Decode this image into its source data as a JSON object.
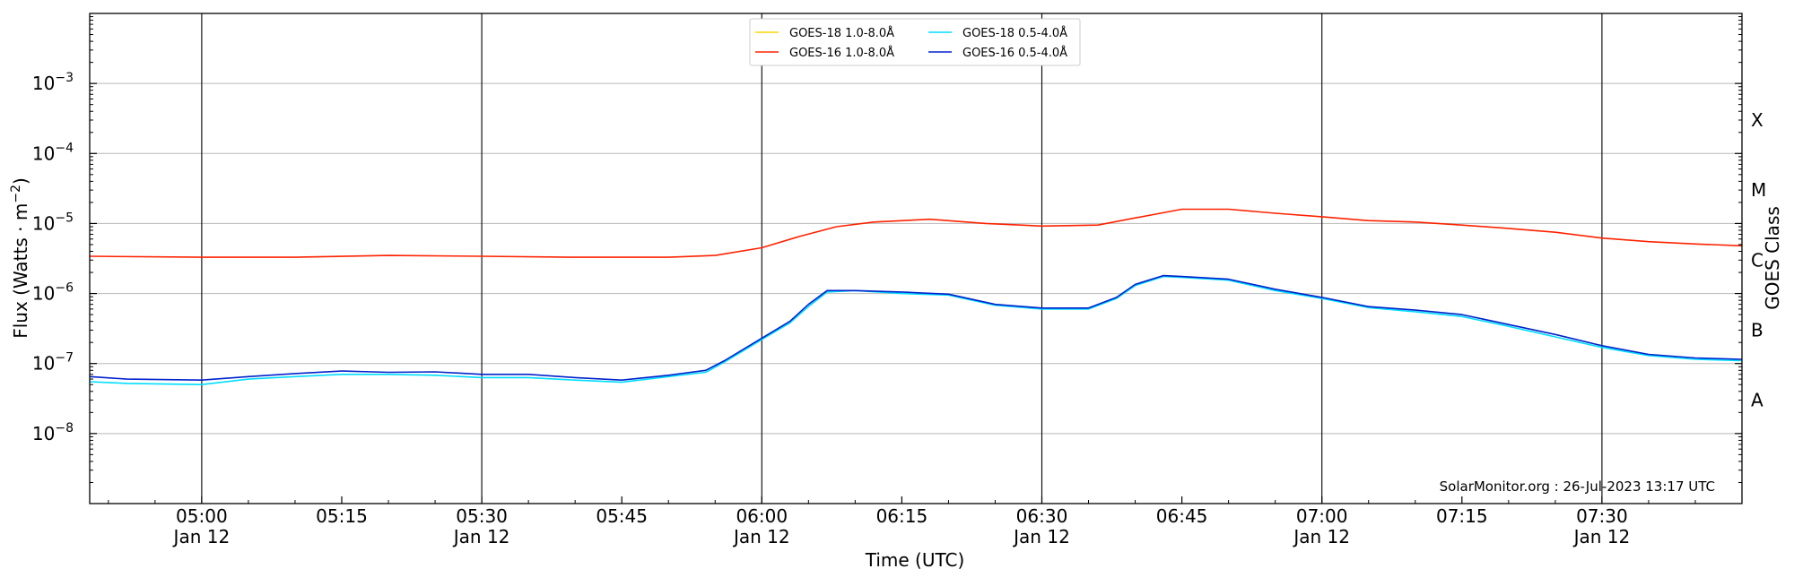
{
  "chart_data": {
    "type": "line",
    "xlabel": "Time (UTC)",
    "ylabel_main": "Flux (Watts · m",
    "ylabel_exp": "−2",
    "ylabel_close": ")",
    "ylabel_right": "GOES Class",
    "y_scale": "log",
    "ylim": [
      1e-09,
      0.01
    ],
    "xlim": [
      "04:48",
      "07:45"
    ],
    "grid": "horizontal gridlines at each decade; vertical lines every 30 minutes",
    "legend_placement": "top-center",
    "credit": "SolarMonitor.org : 26-Jul-2023 13:17 UTC",
    "y_ticks": [
      {
        "value": 1e-08,
        "base": "10",
        "exp": "−8"
      },
      {
        "value": 1e-07,
        "base": "10",
        "exp": "−7"
      },
      {
        "value": 1e-06,
        "base": "10",
        "exp": "−6"
      },
      {
        "value": 1e-05,
        "base": "10",
        "exp": "−5"
      },
      {
        "value": 0.0001,
        "base": "10",
        "exp": "−4"
      },
      {
        "value": 0.001,
        "base": "10",
        "exp": "−3"
      }
    ],
    "x_ticks": [
      {
        "time": "05:00",
        "label": "05:00",
        "date": "Jan 12"
      },
      {
        "time": "05:15",
        "label": "05:15",
        "date": ""
      },
      {
        "time": "05:30",
        "label": "05:30",
        "date": "Jan 12"
      },
      {
        "time": "05:45",
        "label": "05:45",
        "date": ""
      },
      {
        "time": "06:00",
        "label": "06:00",
        "date": "Jan 12"
      },
      {
        "time": "06:15",
        "label": "06:15",
        "date": ""
      },
      {
        "time": "06:30",
        "label": "06:30",
        "date": "Jan 12"
      },
      {
        "time": "06:45",
        "label": "06:45",
        "date": ""
      },
      {
        "time": "07:00",
        "label": "07:00",
        "date": "Jan 12"
      },
      {
        "time": "07:15",
        "label": "07:15",
        "date": ""
      },
      {
        "time": "07:30",
        "label": "07:30",
        "date": "Jan 12"
      }
    ],
    "class_labels": [
      {
        "label": "A",
        "value": 3e-08
      },
      {
        "label": "B",
        "value": 3e-07
      },
      {
        "label": "C",
        "value": 3e-06
      },
      {
        "label": "M",
        "value": 3e-05
      },
      {
        "label": "X",
        "value": 0.0003
      }
    ],
    "series": [
      {
        "name": "GOES-18 1.0-8.0Å",
        "color": "#ffd500",
        "points": []
      },
      {
        "name": "GOES-16 1.0-8.0Å",
        "color": "#ff2200",
        "points": [
          [
            "04:48",
            3.4e-06
          ],
          [
            "05:00",
            3.3e-06
          ],
          [
            "05:10",
            3.3e-06
          ],
          [
            "05:20",
            3.5e-06
          ],
          [
            "05:30",
            3.4e-06
          ],
          [
            "05:40",
            3.3e-06
          ],
          [
            "05:50",
            3.3e-06
          ],
          [
            "05:55",
            3.5e-06
          ],
          [
            "06:00",
            4.5e-06
          ],
          [
            "06:04",
            6.5e-06
          ],
          [
            "06:08",
            9e-06
          ],
          [
            "06:12",
            1.05e-05
          ],
          [
            "06:18",
            1.15e-05
          ],
          [
            "06:24",
            1e-05
          ],
          [
            "06:30",
            9.2e-06
          ],
          [
            "06:36",
            9.5e-06
          ],
          [
            "06:40",
            1.2e-05
          ],
          [
            "06:45",
            1.6e-05
          ],
          [
            "06:50",
            1.6e-05
          ],
          [
            "06:55",
            1.4e-05
          ],
          [
            "07:00",
            1.25e-05
          ],
          [
            "07:05",
            1.1e-05
          ],
          [
            "07:10",
            1.05e-05
          ],
          [
            "07:15",
            9.5e-06
          ],
          [
            "07:20",
            8.5e-06
          ],
          [
            "07:25",
            7.5e-06
          ],
          [
            "07:30",
            6.2e-06
          ],
          [
            "07:35",
            5.5e-06
          ],
          [
            "07:40",
            5.1e-06
          ],
          [
            "07:45",
            4.8e-06
          ]
        ]
      },
      {
        "name": "GOES-18 0.5-4.0Å",
        "color": "#00ddff",
        "points": [
          [
            "04:48",
            5.5e-08
          ],
          [
            "04:52",
            5.2e-08
          ],
          [
            "05:00",
            5e-08
          ],
          [
            "05:05",
            6e-08
          ],
          [
            "05:10",
            6.5e-08
          ],
          [
            "05:15",
            7e-08
          ],
          [
            "05:20",
            7e-08
          ],
          [
            "05:25",
            6.8e-08
          ],
          [
            "05:30",
            6.3e-08
          ],
          [
            "05:35",
            6.3e-08
          ],
          [
            "05:40",
            5.8e-08
          ],
          [
            "05:45",
            5.4e-08
          ],
          [
            "05:50",
            6.5e-08
          ],
          [
            "05:54",
            7.5e-08
          ],
          [
            "05:56",
            1.05e-07
          ],
          [
            "06:00",
            2.2e-07
          ],
          [
            "06:03",
            3.8e-07
          ],
          [
            "06:05",
            6.5e-07
          ],
          [
            "06:07",
            1.05e-06
          ],
          [
            "06:10",
            1.1e-06
          ],
          [
            "06:15",
            1e-06
          ],
          [
            "06:20",
            9.5e-07
          ],
          [
            "06:25",
            6.8e-07
          ],
          [
            "06:30",
            6e-07
          ],
          [
            "06:35",
            6e-07
          ],
          [
            "06:38",
            8.5e-07
          ],
          [
            "06:40",
            1.3e-06
          ],
          [
            "06:43",
            1.75e-06
          ],
          [
            "06:45",
            1.7e-06
          ],
          [
            "06:50",
            1.55e-06
          ],
          [
            "06:55",
            1.1e-06
          ],
          [
            "07:00",
            8.5e-07
          ],
          [
            "07:05",
            6.3e-07
          ],
          [
            "07:10",
            5.5e-07
          ],
          [
            "07:15",
            4.7e-07
          ],
          [
            "07:20",
            3.4e-07
          ],
          [
            "07:25",
            2.4e-07
          ],
          [
            "07:30",
            1.7e-07
          ],
          [
            "07:35",
            1.3e-07
          ],
          [
            "07:40",
            1.15e-07
          ],
          [
            "07:45",
            1.1e-07
          ]
        ]
      },
      {
        "name": "GOES-16 0.5-4.0Å",
        "color": "#0022cc",
        "points": [
          [
            "04:48",
            6.5e-08
          ],
          [
            "04:52",
            6e-08
          ],
          [
            "05:00",
            5.8e-08
          ],
          [
            "05:05",
            6.5e-08
          ],
          [
            "05:10",
            7.2e-08
          ],
          [
            "05:15",
            7.8e-08
          ],
          [
            "05:20",
            7.5e-08
          ],
          [
            "05:25",
            7.6e-08
          ],
          [
            "05:30",
            7e-08
          ],
          [
            "05:35",
            7e-08
          ],
          [
            "05:40",
            6.3e-08
          ],
          [
            "05:45",
            5.8e-08
          ],
          [
            "05:50",
            6.8e-08
          ],
          [
            "05:54",
            8e-08
          ],
          [
            "05:56",
            1.1e-07
          ],
          [
            "06:00",
            2.3e-07
          ],
          [
            "06:03",
            4e-07
          ],
          [
            "06:05",
            7e-07
          ],
          [
            "06:07",
            1.1e-06
          ],
          [
            "06:10",
            1.1e-06
          ],
          [
            "06:15",
            1.05e-06
          ],
          [
            "06:20",
            9.8e-07
          ],
          [
            "06:25",
            7e-07
          ],
          [
            "06:30",
            6.2e-07
          ],
          [
            "06:35",
            6.2e-07
          ],
          [
            "06:38",
            8.8e-07
          ],
          [
            "06:40",
            1.35e-06
          ],
          [
            "06:43",
            1.8e-06
          ],
          [
            "06:45",
            1.75e-06
          ],
          [
            "06:50",
            1.6e-06
          ],
          [
            "06:55",
            1.15e-06
          ],
          [
            "07:00",
            8.8e-07
          ],
          [
            "07:05",
            6.5e-07
          ],
          [
            "07:10",
            5.8e-07
          ],
          [
            "07:15",
            5e-07
          ],
          [
            "07:20",
            3.6e-07
          ],
          [
            "07:25",
            2.6e-07
          ],
          [
            "07:30",
            1.8e-07
          ],
          [
            "07:35",
            1.35e-07
          ],
          [
            "07:40",
            1.2e-07
          ],
          [
            "07:45",
            1.15e-07
          ]
        ]
      }
    ]
  }
}
